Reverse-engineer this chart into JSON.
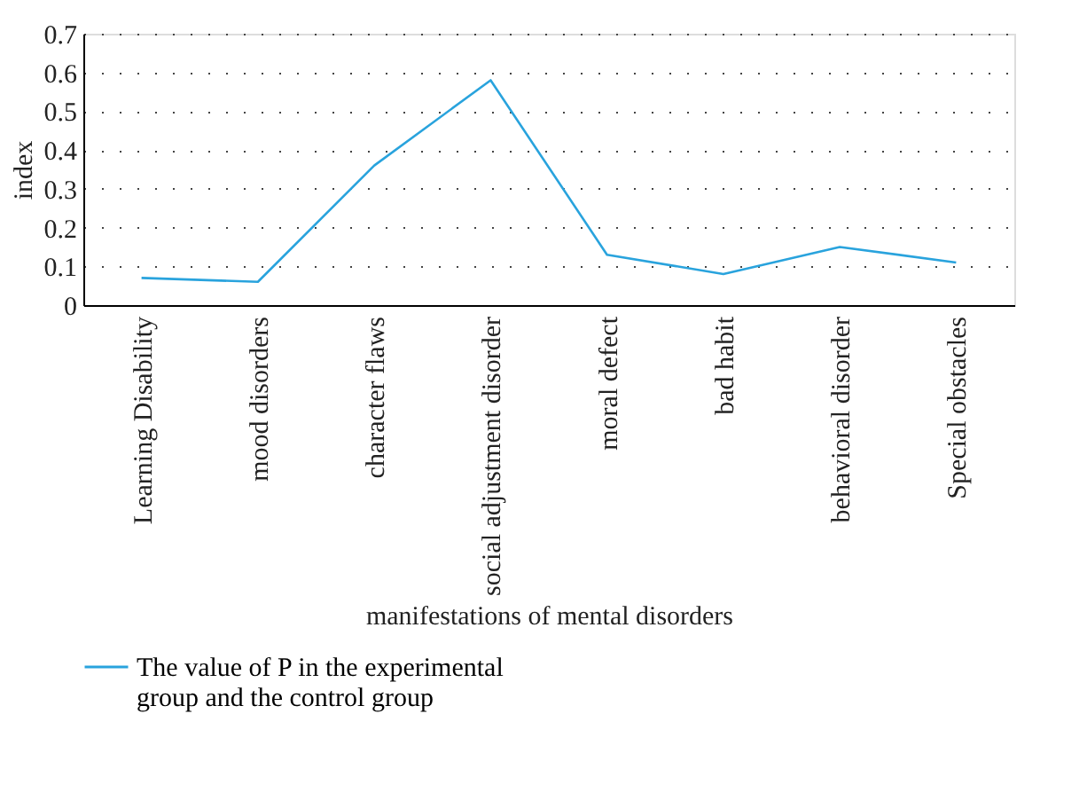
{
  "chart_data": {
    "type": "line",
    "xlabel": "manifestations of mental disorders",
    "ylabel": "index",
    "categories": [
      "Learning Disability",
      "mood disorders",
      "character flaws",
      "social adjustment disorder",
      "moral defect",
      "bad habit",
      "behavioral disorder",
      "Special obstacles"
    ],
    "series": [
      {
        "name": "The value of P in the experimental group and the control group",
        "color": "#29a3dd",
        "values": [
          0.07,
          0.06,
          0.36,
          0.58,
          0.13,
          0.08,
          0.15,
          0.11
        ]
      }
    ],
    "ylim": [
      0,
      0.7
    ],
    "yticks": [
      0,
      0.1,
      0.2,
      0.3,
      0.4,
      0.5,
      0.6,
      0.7
    ],
    "grid": "y",
    "legend": "bottom",
    "marker": "none",
    "line_style": "solid"
  }
}
